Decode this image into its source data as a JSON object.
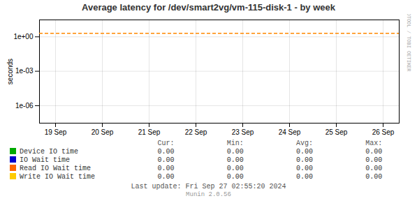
{
  "chart_data": {
    "type": "line",
    "title": "Average latency for /dev/smart2vg/vm-115-disk-1 - by week",
    "ylabel": "seconds",
    "categories": [
      "19 Sep",
      "20 Sep",
      "21 Sep",
      "22 Sep",
      "23 Sep",
      "24 Sep",
      "25 Sep",
      "26 Sep"
    ],
    "series": [
      {
        "name": "Device IO time",
        "color": "#00aa00",
        "values": [
          null,
          null,
          null,
          null,
          null,
          null,
          null,
          null
        ]
      },
      {
        "name": "IO Wait time",
        "color": "#0000cc",
        "values": [
          null,
          null,
          null,
          null,
          null,
          null,
          null,
          null
        ]
      },
      {
        "name": "Read IO Wait time",
        "color": "#ff6600",
        "values": [
          null,
          null,
          null,
          null,
          null,
          null,
          null,
          null
        ]
      },
      {
        "name": "Write IO Wait time",
        "color": "#ffcc00",
        "values": [
          null,
          null,
          null,
          null,
          null,
          null,
          null,
          null
        ]
      }
    ],
    "log": "y",
    "ylim": [
      3e-08,
      30
    ],
    "yticks": [
      {
        "value": 1e-06,
        "label": "1e-06"
      },
      {
        "value": 0.001,
        "label": "1e-03"
      },
      {
        "value": 1,
        "label": "1e+00"
      }
    ],
    "grid": true,
    "reference_line": {
      "value": 2.0,
      "color": "#ff8800",
      "line_style": "dashed"
    },
    "table": {
      "headers": [
        "Cur:",
        "Min:",
        "Avg:",
        "Max:"
      ],
      "rows": [
        [
          "0.00",
          "0.00",
          "0.00",
          "0.00"
        ],
        [
          "0.00",
          "0.00",
          "0.00",
          "0.00"
        ],
        [
          "0.00",
          "0.00",
          "0.00",
          "0.00"
        ],
        [
          "0.00",
          "0.00",
          "0.00",
          "0.00"
        ]
      ]
    },
    "last_update": "Last update: Fri Sep 27 02:55:20 2024",
    "watermark": "RRDTOOL / TOBI OETIKER",
    "version": "Munin 2.0.56"
  }
}
